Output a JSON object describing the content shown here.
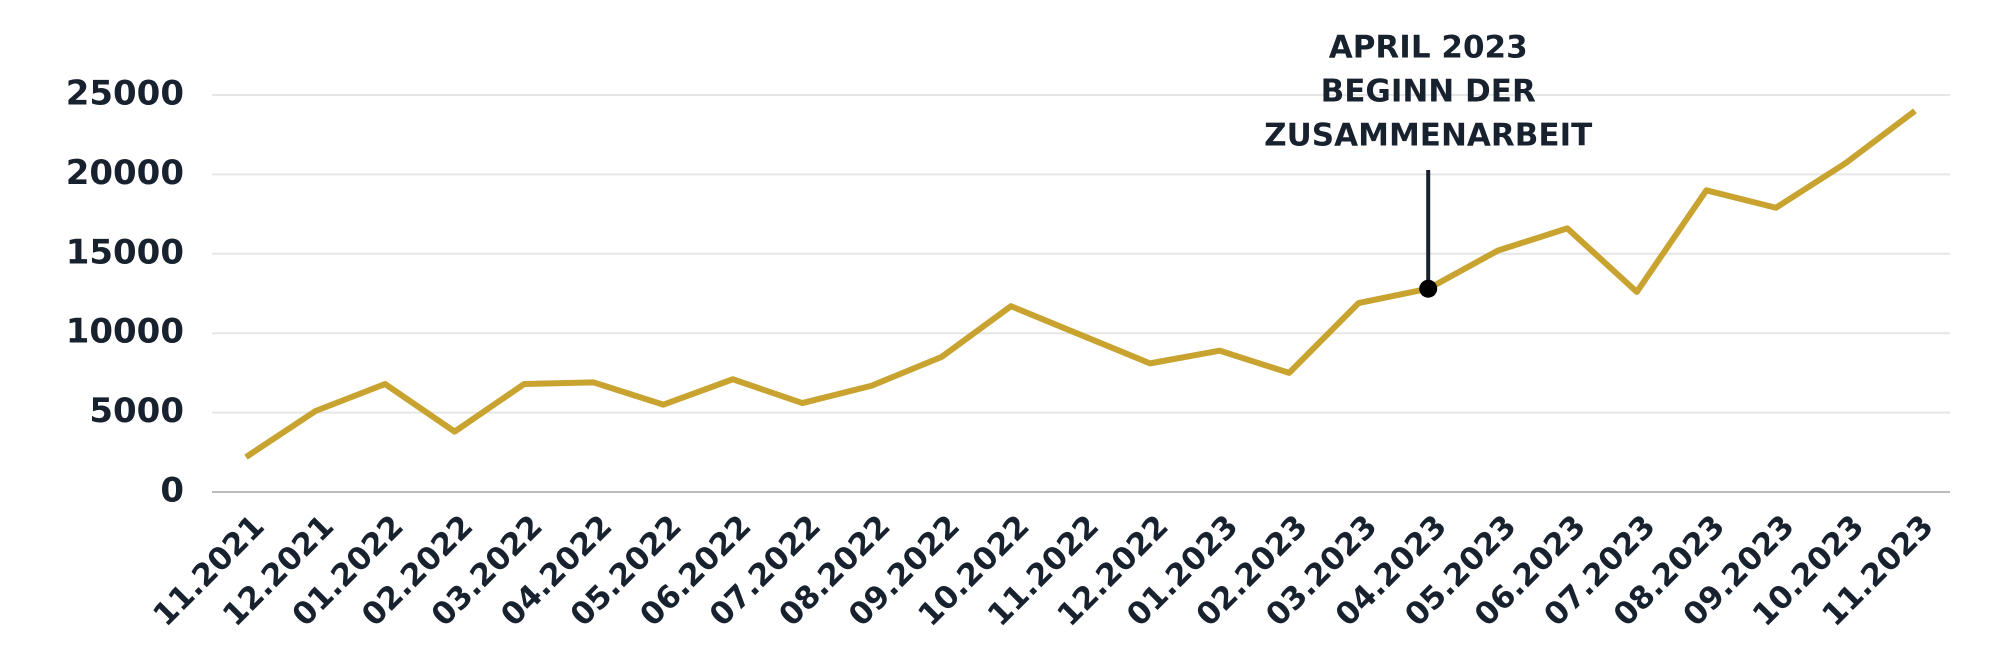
{
  "chart_data": {
    "type": "line",
    "categories": [
      "11.2021",
      "12.2021",
      "01.2022",
      "02.2022",
      "03.2022",
      "04.2022",
      "05.2022",
      "06.2022",
      "07.2022",
      "08.2022",
      "09.2022",
      "10.2022",
      "11.2022",
      "12.2022",
      "01.2023",
      "02.2023",
      "03.2023",
      "04.2023",
      "05.2023",
      "06.2023",
      "07.2023",
      "08.2023",
      "09.2023",
      "10.2023",
      "11.2023"
    ],
    "series": [
      {
        "color": "#c9a330",
        "values": [
          2200,
          5100,
          6800,
          3800,
          6800,
          6900,
          5500,
          7100,
          5600,
          6700,
          8500,
          11700,
          9900,
          8100,
          8900,
          7500,
          11900,
          12800,
          15200,
          16600,
          12600,
          19000,
          17900,
          20700,
          24000
        ]
      }
    ],
    "ylim": [
      0,
      25000
    ],
    "yticks": [
      0,
      5000,
      10000,
      15000,
      20000,
      25000
    ],
    "grid": true,
    "annotation": {
      "x": "04.2023",
      "text": [
        "APRIL 2023",
        "BEGINN DER",
        "ZUSAMMENARBEIT"
      ]
    }
  }
}
